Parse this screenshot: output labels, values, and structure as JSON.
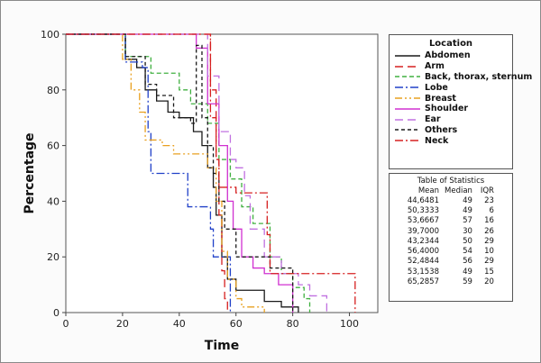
{
  "chart_data": {
    "type": "line",
    "subtype": "step",
    "xlabel": "Time",
    "ylabel": "Percentage",
    "xlim": [
      0,
      110
    ],
    "ylim": [
      0,
      100
    ],
    "xticks": [
      0,
      20,
      40,
      60,
      80,
      100
    ],
    "yticks": [
      0,
      20,
      40,
      60,
      80,
      100
    ],
    "grid": false,
    "legend": {
      "title": "Location",
      "placement": "right"
    },
    "series": [
      {
        "name": "Abdomen",
        "color": "#1a1a1a",
        "dash": "solid",
        "points": [
          [
            0,
            100
          ],
          [
            21,
            100
          ],
          [
            21,
            91
          ],
          [
            25,
            88
          ],
          [
            28,
            80
          ],
          [
            32,
            76
          ],
          [
            36,
            72
          ],
          [
            40,
            70
          ],
          [
            45,
            65
          ],
          [
            48,
            60
          ],
          [
            50,
            52
          ],
          [
            52,
            45
          ],
          [
            53,
            35
          ],
          [
            55,
            20
          ],
          [
            57,
            12
          ],
          [
            60,
            8
          ],
          [
            70,
            4
          ],
          [
            76,
            2
          ],
          [
            82,
            0
          ]
        ]
      },
      {
        "name": "Arm",
        "color": "#d62020",
        "dash": "longdash",
        "points": [
          [
            0,
            100
          ],
          [
            47,
            100
          ],
          [
            50,
            100
          ],
          [
            51,
            80
          ],
          [
            53,
            55
          ],
          [
            54,
            35
          ],
          [
            55,
            20
          ],
          [
            55,
            15
          ],
          [
            56,
            5
          ],
          [
            57,
            0
          ]
        ]
      },
      {
        "name": "Back, thorax, sternum",
        "color": "#40b040",
        "dash": "dash",
        "points": [
          [
            0,
            100
          ],
          [
            21,
            100
          ],
          [
            21,
            92
          ],
          [
            30,
            86
          ],
          [
            38,
            86
          ],
          [
            40,
            80
          ],
          [
            44,
            75
          ],
          [
            50,
            68
          ],
          [
            54,
            55
          ],
          [
            58,
            48
          ],
          [
            62,
            38
          ],
          [
            66,
            32
          ],
          [
            72,
            20
          ],
          [
            76,
            14
          ],
          [
            80,
            9
          ],
          [
            84,
            5
          ],
          [
            86,
            0
          ]
        ]
      },
      {
        "name": "Lobe",
        "color": "#2040c8",
        "dash": "dashdot",
        "points": [
          [
            0,
            100
          ],
          [
            21,
            100
          ],
          [
            21,
            90
          ],
          [
            27,
            88
          ],
          [
            29,
            65
          ],
          [
            30,
            50
          ],
          [
            40,
            50
          ],
          [
            43,
            38
          ],
          [
            50,
            38
          ],
          [
            51,
            30
          ],
          [
            52,
            20
          ],
          [
            56,
            20
          ],
          [
            58,
            0
          ]
        ]
      },
      {
        "name": "Breast",
        "color": "#e8a020",
        "dash": "dashdotdot",
        "points": [
          [
            0,
            100
          ],
          [
            20,
            100
          ],
          [
            20,
            91
          ],
          [
            23,
            80
          ],
          [
            26,
            72
          ],
          [
            28,
            62
          ],
          [
            34,
            60
          ],
          [
            38,
            57
          ],
          [
            46,
            57
          ],
          [
            50,
            52
          ],
          [
            53,
            40
          ],
          [
            55,
            22
          ],
          [
            57,
            12
          ],
          [
            60,
            5
          ],
          [
            62,
            2
          ],
          [
            70,
            0
          ]
        ]
      },
      {
        "name": "Shoulder",
        "color": "#d030d0",
        "dash": "solid",
        "points": [
          [
            0,
            100
          ],
          [
            46,
            100
          ],
          [
            46,
            95
          ],
          [
            50,
            75
          ],
          [
            54,
            60
          ],
          [
            57,
            40
          ],
          [
            59,
            30
          ],
          [
            62,
            20
          ],
          [
            66,
            16
          ],
          [
            70,
            14
          ],
          [
            75,
            10
          ],
          [
            80,
            0
          ]
        ]
      },
      {
        "name": "Ear",
        "color": "#c070e0",
        "dash": "longdash",
        "points": [
          [
            0,
            100
          ],
          [
            48,
            100
          ],
          [
            50,
            85
          ],
          [
            54,
            65
          ],
          [
            58,
            55
          ],
          [
            60,
            52
          ],
          [
            63,
            42
          ],
          [
            65,
            30
          ],
          [
            70,
            20
          ],
          [
            76,
            14
          ],
          [
            82,
            10
          ],
          [
            86,
            6
          ],
          [
            92,
            3
          ],
          [
            92,
            0
          ]
        ]
      },
      {
        "name": "Others",
        "color": "#1a1a1a",
        "dash": "shortdash",
        "points": [
          [
            0,
            100
          ],
          [
            21,
            100
          ],
          [
            21,
            92
          ],
          [
            28,
            82
          ],
          [
            32,
            78
          ],
          [
            38,
            70
          ],
          [
            44,
            68
          ],
          [
            46,
            96
          ],
          [
            48,
            70
          ],
          [
            50,
            60
          ],
          [
            52,
            50
          ],
          [
            54,
            40
          ],
          [
            56,
            30
          ],
          [
            60,
            20
          ],
          [
            72,
            16
          ],
          [
            80,
            10
          ],
          [
            80,
            0
          ]
        ]
      },
      {
        "name": "Neck",
        "color": "#d62020",
        "dash": "dashdot",
        "points": [
          [
            0,
            100
          ],
          [
            49,
            100
          ],
          [
            51,
            70
          ],
          [
            53,
            55
          ],
          [
            54,
            45
          ],
          [
            58,
            45
          ],
          [
            60,
            43
          ],
          [
            70,
            43
          ],
          [
            71,
            28
          ],
          [
            72,
            14
          ],
          [
            102,
            14
          ],
          [
            102,
            0
          ]
        ]
      }
    ],
    "stats_table": {
      "title": "Table of Statistics",
      "columns": [
        "Mean",
        "Median",
        "IQR"
      ],
      "rows": [
        [
          "44,6481",
          "49",
          "23"
        ],
        [
          "50,3333",
          "49",
          "6"
        ],
        [
          "53,6667",
          "57",
          "16"
        ],
        [
          "39,7000",
          "30",
          "26"
        ],
        [
          "43,2344",
          "50",
          "29"
        ],
        [
          "56,4000",
          "54",
          "10"
        ],
        [
          "52,4844",
          "56",
          "29"
        ],
        [
          "53,1538",
          "49",
          "15"
        ],
        [
          "65,2857",
          "59",
          "20"
        ]
      ]
    }
  }
}
